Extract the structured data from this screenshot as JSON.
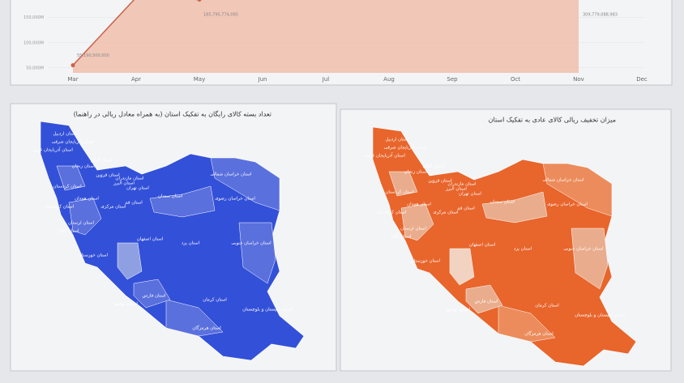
{
  "chart_data": {
    "type": "line",
    "categories": [
      "Mar",
      "Apr",
      "May",
      "Jun",
      "Jul",
      "Aug",
      "Sep",
      "Oct",
      "Nov",
      "Dec"
    ],
    "series": [
      {
        "color": "#c8644a",
        "values": [
          55190500000,
          190000000000,
          185795774085,
          null,
          null,
          null,
          null,
          null,
          309779088983,
          null
        ],
        "value_labels": [
          "55,190,500,000",
          null,
          "185,795,774,085",
          null,
          null,
          null,
          null,
          null,
          "309,779,088,983",
          null
        ]
      }
    ],
    "ylim": [
      40000000000,
      185000000000
    ],
    "yticks": [
      {
        "value": 50000000000,
        "label": "50,000M"
      },
      {
        "value": 100000000000,
        "label": "100,000M"
      },
      {
        "value": 150000000000,
        "label": "150,000M"
      }
    ],
    "area_color": "#f0bba9"
  },
  "maps": [
    {
      "title": "تعداد بسته کالای رایگان به تفکیک استان (به همراه معادل ریالی در راهنما)"
    },
    {
      "title": "میزان تخفیف ریالی کالای عادی به تفکیک استان"
    }
  ],
  "provinces": [
    "استان اردبیل",
    "استان آذربایجان شرقی",
    "استان آذربایجان غربی",
    "استان زنجان",
    "استان گیلان",
    "استان مازندران",
    "استان قزوین",
    "استان تهران",
    "استان البرز",
    "استان قم",
    "استان کردستان",
    "استان همدان",
    "استان مرکزی",
    "استان کرمانشاه",
    "استان سمنان",
    "استان خراسان شمالی",
    "استان خراسان رضوی",
    "استان لرستان",
    "استان ایلام",
    "استان اصفهان",
    "استان خوزستان",
    "استان یزد",
    "استان خراسان جنوبی",
    "استان فارس",
    "استان بوشهر",
    "استان کرمان",
    "استان سیستان و بلوچستان",
    "استان هرمزگان"
  ]
}
